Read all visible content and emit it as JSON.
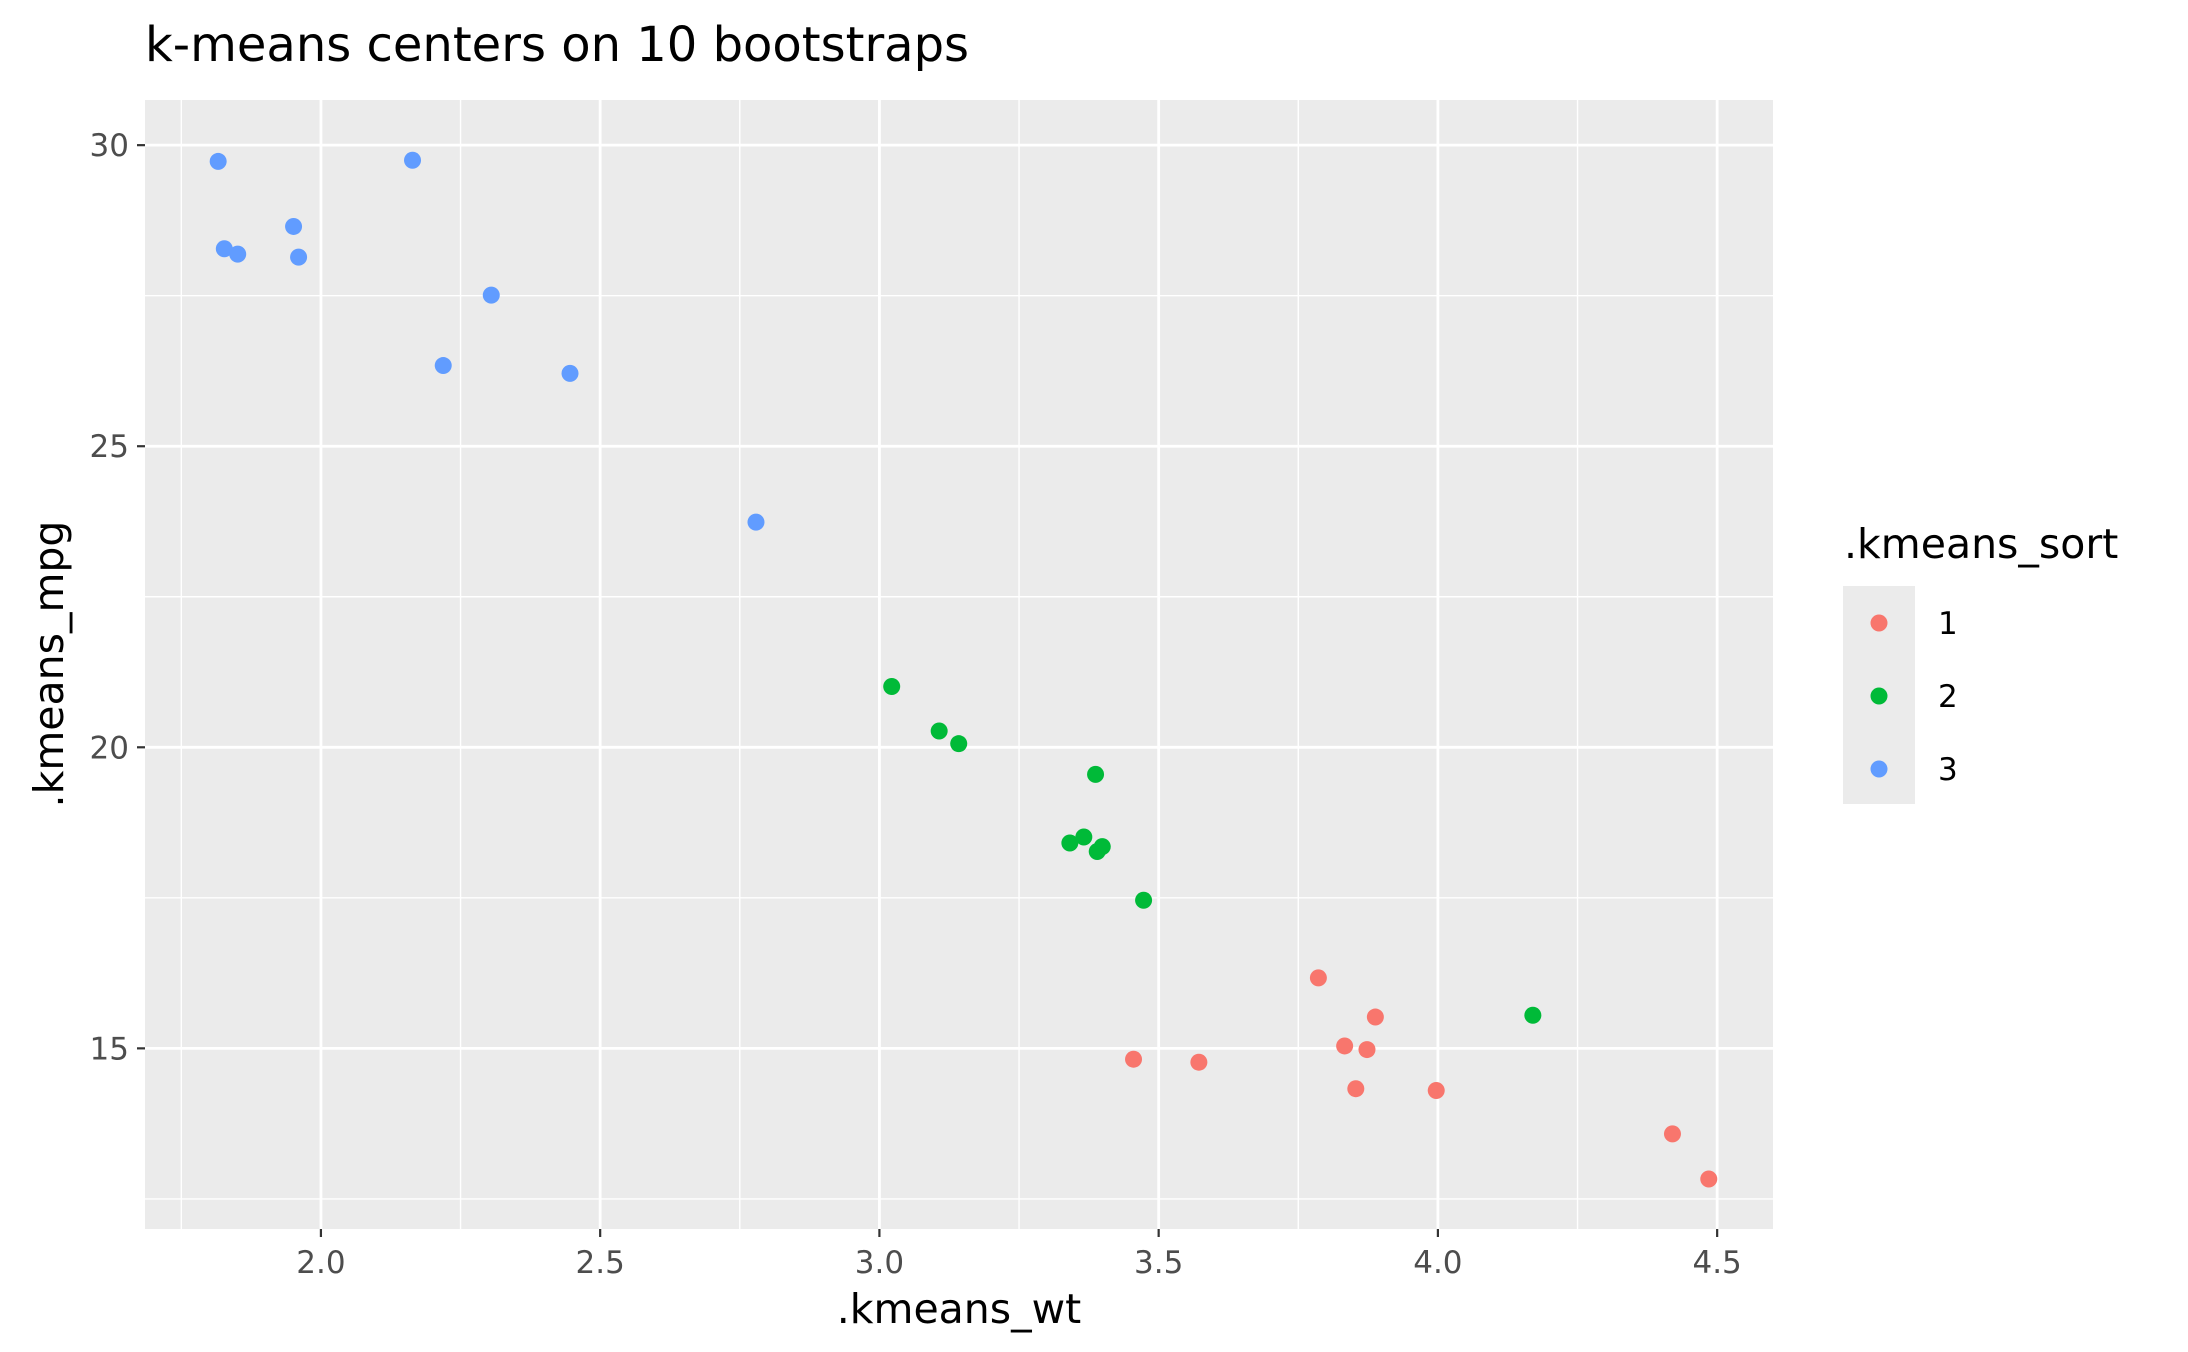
{
  "chart_data": {
    "type": "scatter",
    "title": "k-means centers on 10 bootstraps",
    "xlabel": ".kmeans_wt",
    "ylabel": ".kmeans_mpg",
    "xlim": [
      1.685,
      4.6
    ],
    "ylim": [
      12.0,
      30.75
    ],
    "x_ticks": [
      2.0,
      2.5,
      3.0,
      3.5,
      4.0,
      4.5
    ],
    "x_tick_labels": [
      "2.0",
      "2.5",
      "3.0",
      "3.5",
      "4.0",
      "4.5"
    ],
    "y_ticks": [
      15,
      20,
      25,
      30
    ],
    "y_tick_labels": [
      "15",
      "20",
      "25",
      "30"
    ],
    "grid": true,
    "background": "#ebebeb",
    "legend": {
      "title": ".kmeans_sort",
      "placement": "right"
    },
    "series": [
      {
        "name": "1",
        "color": "#F8766D",
        "points": [
          {
            "x": 3.455,
            "y": 14.82
          },
          {
            "x": 3.572,
            "y": 14.77
          },
          {
            "x": 3.786,
            "y": 16.17
          },
          {
            "x": 3.833,
            "y": 15.04
          },
          {
            "x": 3.853,
            "y": 14.33
          },
          {
            "x": 3.873,
            "y": 14.98
          },
          {
            "x": 3.888,
            "y": 15.52
          },
          {
            "x": 3.997,
            "y": 14.3
          },
          {
            "x": 4.42,
            "y": 13.58
          },
          {
            "x": 4.485,
            "y": 12.83
          }
        ]
      },
      {
        "name": "2",
        "color": "#00BA38",
        "points": [
          {
            "x": 3.022,
            "y": 21.01
          },
          {
            "x": 3.107,
            "y": 20.27
          },
          {
            "x": 3.142,
            "y": 20.06
          },
          {
            "x": 3.341,
            "y": 18.41
          },
          {
            "x": 3.366,
            "y": 18.51
          },
          {
            "x": 3.387,
            "y": 19.55
          },
          {
            "x": 3.39,
            "y": 18.27
          },
          {
            "x": 3.399,
            "y": 18.35
          },
          {
            "x": 3.473,
            "y": 17.46
          },
          {
            "x": 4.17,
            "y": 15.55
          }
        ]
      },
      {
        "name": "3",
        "color": "#619CFF",
        "points": [
          {
            "x": 1.816,
            "y": 29.73
          },
          {
            "x": 1.827,
            "y": 28.28
          },
          {
            "x": 1.851,
            "y": 28.19
          },
          {
            "x": 1.951,
            "y": 28.65
          },
          {
            "x": 1.96,
            "y": 28.14
          },
          {
            "x": 2.164,
            "y": 29.75
          },
          {
            "x": 2.219,
            "y": 26.34
          },
          {
            "x": 2.305,
            "y": 27.51
          },
          {
            "x": 2.446,
            "y": 26.21
          },
          {
            "x": 2.779,
            "y": 23.74
          }
        ]
      }
    ]
  }
}
